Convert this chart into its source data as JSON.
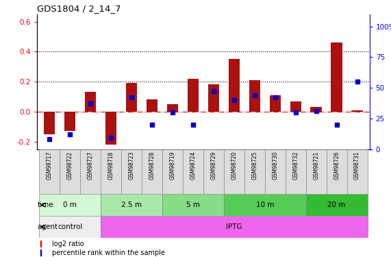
{
  "title": "GDS1804 / 2_14_7",
  "samples": [
    "GSM98717",
    "GSM98722",
    "GSM98727",
    "GSM98718",
    "GSM98723",
    "GSM98728",
    "GSM98719",
    "GSM98724",
    "GSM98729",
    "GSM98720",
    "GSM98725",
    "GSM98730",
    "GSM98732",
    "GSM98721",
    "GSM98726",
    "GSM98731"
  ],
  "log2_ratio": [
    -0.15,
    -0.13,
    0.13,
    -0.22,
    0.19,
    0.08,
    0.05,
    0.22,
    0.18,
    0.35,
    0.21,
    0.11,
    0.07,
    0.03,
    0.46,
    0.01
  ],
  "pct_rank": [
    8,
    12,
    37,
    9,
    42,
    20,
    30,
    20,
    47,
    40,
    44,
    42,
    30,
    31,
    20,
    55
  ],
  "time_groups": [
    {
      "label": "0 m",
      "start": 0,
      "end": 3,
      "color": "#d4f7d4"
    },
    {
      "label": "2.5 m",
      "start": 3,
      "end": 6,
      "color": "#aae8aa"
    },
    {
      "label": "5 m",
      "start": 6,
      "end": 9,
      "color": "#88dd88"
    },
    {
      "label": "10 m",
      "start": 9,
      "end": 13,
      "color": "#55cc55"
    },
    {
      "label": "20 m",
      "start": 13,
      "end": 16,
      "color": "#33bb33"
    }
  ],
  "agent_groups": [
    {
      "label": "control",
      "start": 0,
      "end": 3,
      "color": "#eeeeee"
    },
    {
      "label": "IPTG",
      "start": 3,
      "end": 16,
      "color": "#ee66ee"
    }
  ],
  "bar_color": "#aa1111",
  "dot_color": "#0000cc",
  "ylim_left": [
    -0.25,
    0.65
  ],
  "ylim_right": [
    0,
    110
  ],
  "yticks_left": [
    -0.2,
    0.0,
    0.2,
    0.4,
    0.6
  ],
  "yticks_right": [
    0,
    25,
    50,
    75,
    100
  ],
  "hlines": [
    0.2,
    0.4
  ],
  "zero_line_color": "#cc2222",
  "background_color": "#ffffff"
}
